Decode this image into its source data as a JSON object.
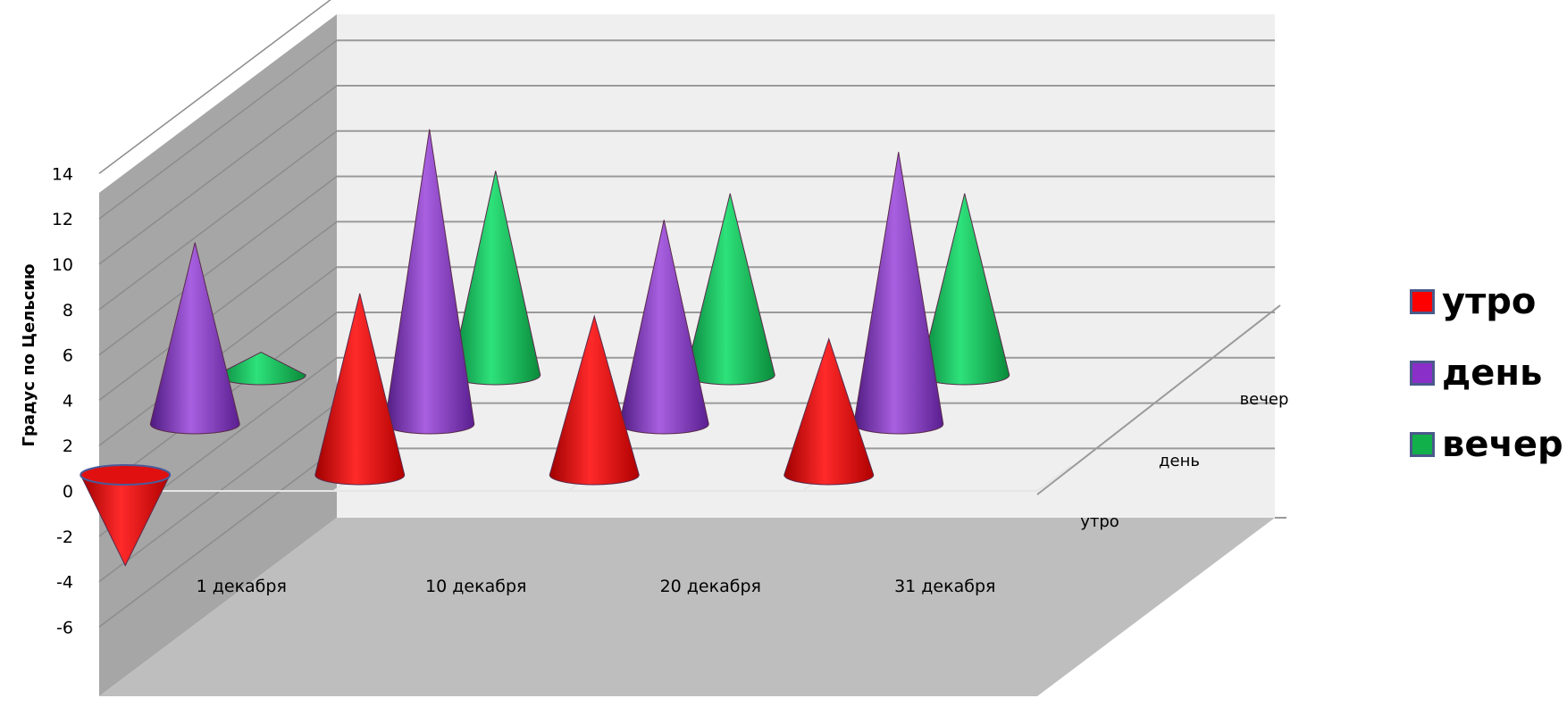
{
  "chart_data": {
    "type": "bar",
    "shape": "cone-3d",
    "ylabel": "Градус по Цельсию",
    "ylim": [
      -6,
      14
    ],
    "yticks": [
      "14",
      "12",
      "10",
      "8",
      "6",
      "4",
      "2",
      "0",
      "-2",
      "-4",
      "-6"
    ],
    "categories": [
      "1 декабря",
      "10 декабря",
      "20 декабря",
      "31 декабря"
    ],
    "depth_labels": [
      "утро",
      "день",
      "вечер"
    ],
    "series": [
      {
        "name": "утро",
        "color": "#ff0000",
        "values": [
          -4,
          8,
          7,
          6
        ]
      },
      {
        "name": "день",
        "color": "#8a2fc8",
        "values": [
          8,
          13,
          9,
          12
        ]
      },
      {
        "name": "вечер",
        "color": "#12b04a",
        "values": [
          1,
          9,
          8,
          8
        ]
      }
    ],
    "legend_position": "right",
    "grid": true
  },
  "legend": {
    "items": [
      {
        "label": "утро",
        "color": "#ff0000"
      },
      {
        "label": "день",
        "color": "#8a2fc8"
      },
      {
        "label": "вечер",
        "color": "#12b04a"
      }
    ]
  }
}
